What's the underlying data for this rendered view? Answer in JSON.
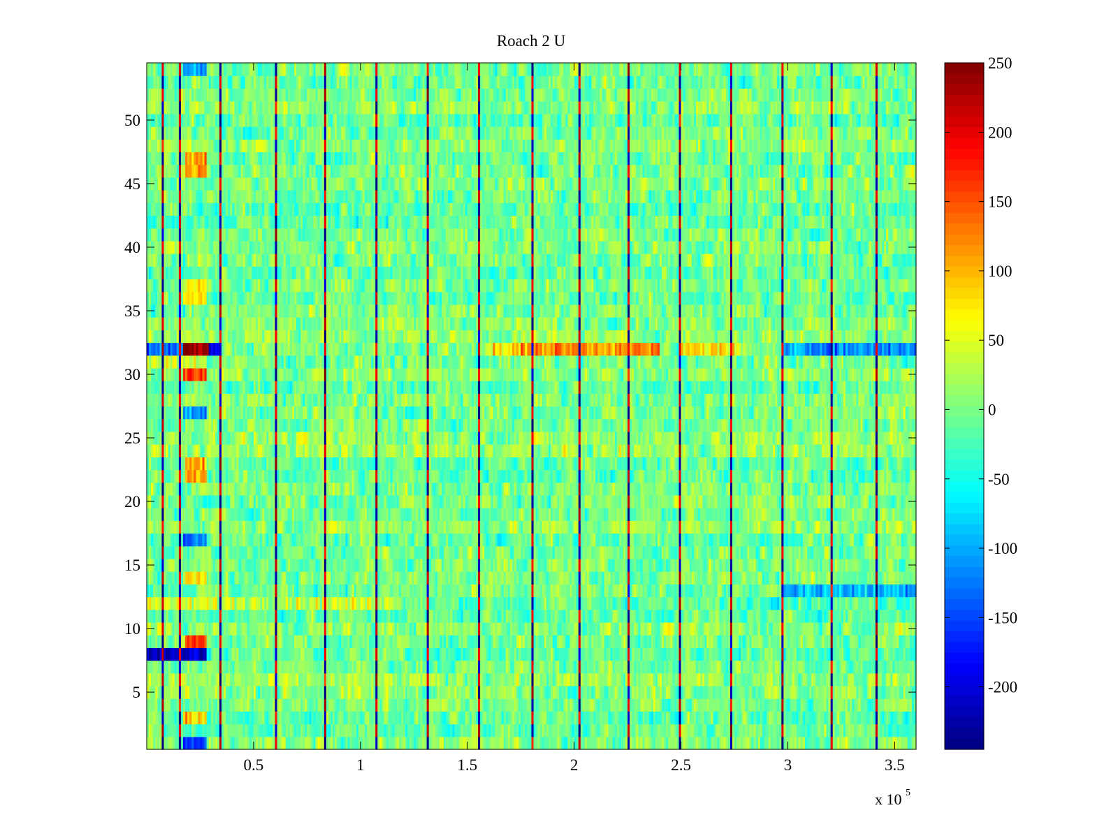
{
  "chart_data": {
    "type": "heatmap",
    "title": "Roach 2 U",
    "xlabel": "",
    "ylabel": "",
    "x_multiplier_label": "x 10",
    "x_multiplier_exponent": "5",
    "xlim": [
      0,
      3.6
    ],
    "ylim": [
      0.5,
      54.5
    ],
    "x_ticks": [
      0.5,
      1,
      1.5,
      2,
      2.5,
      3,
      3.5
    ],
    "x_tick_labels": [
      "0.5",
      "1",
      "1.5",
      "2",
      "2.5",
      "3",
      "3.5"
    ],
    "y_ticks": [
      5,
      10,
      15,
      20,
      25,
      30,
      35,
      40,
      45,
      50
    ],
    "y_tick_labels": [
      "5",
      "10",
      "15",
      "20",
      "25",
      "30",
      "35",
      "40",
      "45",
      "50"
    ],
    "rows": 54,
    "colorbar": {
      "colormap": "jet",
      "clim": [
        -245,
        250
      ],
      "ticks": [
        250,
        200,
        150,
        100,
        50,
        0,
        -50,
        -100,
        -150,
        -200
      ],
      "tick_labels": [
        "250",
        "200",
        "150",
        "100",
        "50",
        "0",
        "-50",
        "-100",
        "-150",
        "-200"
      ]
    },
    "background_mean": 0,
    "background_noise": 38,
    "periodic_columns": {
      "description": "narrow vertical stripes: alternating high/low spikes at regular x positions",
      "x": [
        0.07,
        0.15,
        0.35,
        0.6,
        0.84,
        1.07,
        1.31,
        1.55,
        1.8,
        2.03,
        2.26,
        2.49,
        2.73,
        2.97,
        3.2,
        3.41
      ],
      "values": [
        200,
        -230
      ]
    },
    "row_bands": [
      {
        "row": 32,
        "x_range": [
          0.0,
          0.17
        ],
        "value": -130
      },
      {
        "row": 32,
        "x_range": [
          0.17,
          0.29
        ],
        "value": 250
      },
      {
        "row": 32,
        "x_range": [
          0.29,
          0.35
        ],
        "value": -180
      },
      {
        "row": 32,
        "x_range": [
          1.6,
          1.75
        ],
        "value": 70
      },
      {
        "row": 32,
        "x_range": [
          1.75,
          2.4
        ],
        "value": 120
      },
      {
        "row": 32,
        "x_range": [
          2.5,
          2.75
        ],
        "value": 80
      },
      {
        "row": 32,
        "x_range": [
          2.97,
          3.6
        ],
        "value": -110
      },
      {
        "row": 13,
        "x_range": [
          2.97,
          3.6
        ],
        "value": -90
      },
      {
        "row": 8,
        "x_range": [
          0.0,
          0.28
        ],
        "value": -210
      },
      {
        "row": 9,
        "x_range": [
          0.18,
          0.28
        ],
        "value": 160
      },
      {
        "row": 30,
        "x_range": [
          0.17,
          0.28
        ],
        "value": 160
      },
      {
        "row": 46,
        "x_range": [
          0.18,
          0.28
        ],
        "value": 120
      },
      {
        "row": 47,
        "x_range": [
          0.18,
          0.28
        ],
        "value": 110
      },
      {
        "row": 22,
        "x_range": [
          0.18,
          0.28
        ],
        "value": 110
      },
      {
        "row": 23,
        "x_range": [
          0.18,
          0.28
        ],
        "value": 100
      },
      {
        "row": 14,
        "x_range": [
          0.17,
          0.28
        ],
        "value": 90
      },
      {
        "row": 3,
        "x_range": [
          0.17,
          0.28
        ],
        "value": 80
      },
      {
        "row": 1,
        "x_range": [
          0.17,
          0.28
        ],
        "value": -150
      },
      {
        "row": 17,
        "x_range": [
          0.17,
          0.28
        ],
        "value": -130
      },
      {
        "row": 27,
        "x_range": [
          0.17,
          0.28
        ],
        "value": -120
      },
      {
        "row": 54,
        "x_range": [
          0.17,
          0.28
        ],
        "value": -110
      },
      {
        "row": 36,
        "x_range": [
          0.17,
          0.28
        ],
        "value": 80
      },
      {
        "row": 37,
        "x_range": [
          0.17,
          0.28
        ],
        "value": 80
      },
      {
        "row": 12,
        "x_range": [
          0.0,
          1.2
        ],
        "value": 40
      },
      {
        "row": 31,
        "x_range": [
          0.0,
          0.28
        ],
        "value": 50
      }
    ]
  }
}
